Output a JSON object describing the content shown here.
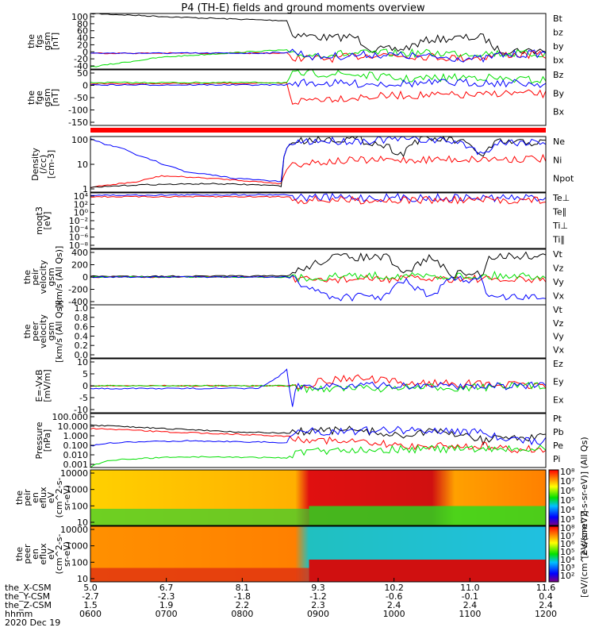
{
  "title": "P4 (TH-E) fields and ground moments overview",
  "colors": {
    "black": "#000000",
    "red": "#ff0000",
    "green": "#00e000",
    "blue": "#0000ff"
  },
  "chart_data": [
    {
      "type": "line",
      "name": "fgs-gsm",
      "ylabel": [
        "the",
        "fgs",
        "gsm",
        "[nT]"
      ],
      "yticks": [
        "100",
        "80",
        "60",
        "40",
        "20",
        "0",
        "-20",
        "-40"
      ],
      "ylim": [
        -40,
        100
      ],
      "legend": [
        {
          "label": "Bt",
          "color": "black"
        },
        {
          "label": "bz",
          "color": "red"
        },
        {
          "label": "by",
          "color": "green"
        },
        {
          "label": "bx",
          "color": "blue"
        }
      ],
      "series": [
        {
          "name": "Bt",
          "color": "black",
          "x": [
            5,
            25,
            40,
            46,
            47,
            52,
            55,
            57,
            60,
            64,
            70,
            76,
            82,
            87,
            90,
            97,
            100
          ],
          "y": [
            100,
            90,
            84,
            82,
            48,
            42,
            38,
            40,
            42,
            8,
            10,
            35,
            38,
            40,
            8,
            6,
            8
          ]
        },
        {
          "name": "bz",
          "color": "red",
          "x": [
            5,
            46,
            47,
            52,
            57,
            64,
            70,
            82,
            87,
            90,
            100
          ],
          "y": [
            0,
            0,
            -10,
            -15,
            -12,
            -3,
            -5,
            -12,
            -10,
            -3,
            -5
          ]
        },
        {
          "name": "by",
          "color": "green",
          "x": [
            5,
            20,
            40,
            46,
            47,
            64,
            87,
            100
          ],
          "y": [
            -35,
            -10,
            5,
            8,
            -5,
            0,
            0,
            -2
          ]
        },
        {
          "name": "bx",
          "color": "blue",
          "x": [
            5,
            40,
            46,
            47,
            52,
            64,
            87,
            90,
            100
          ],
          "y": [
            0,
            0,
            2,
            5,
            -10,
            -3,
            -15,
            -5,
            0
          ]
        }
      ]
    },
    {
      "type": "line",
      "name": "fge-gsm",
      "ylabel": [
        "the",
        "fge",
        "gsm",
        "[nT]"
      ],
      "yticks": [
        "50",
        "0",
        "-50",
        "-100",
        "-150"
      ],
      "ylim": [
        -180,
        60
      ],
      "legend": [
        {
          "label": "Bz",
          "color": "red"
        },
        {
          "label": "By",
          "color": "green"
        },
        {
          "label": "Bx",
          "color": "blue"
        }
      ],
      "series": [
        {
          "name": "Bz",
          "color": "red",
          "x": [
            5,
            46,
            47,
            52,
            60,
            70,
            87,
            90,
            100
          ],
          "y": [
            0,
            2,
            -80,
            -65,
            -60,
            -50,
            -50,
            -40,
            -45
          ]
        },
        {
          "name": "By",
          "color": "green",
          "x": [
            5,
            46,
            47,
            52,
            60,
            70,
            87,
            90,
            100
          ],
          "y": [
            5,
            5,
            40,
            45,
            40,
            20,
            30,
            20,
            15
          ]
        },
        {
          "name": "Bx",
          "color": "blue",
          "x": [
            5,
            46,
            47,
            60,
            87,
            100
          ],
          "y": [
            -5,
            -5,
            5,
            0,
            5,
            0
          ]
        }
      ]
    },
    {
      "type": "line",
      "name": "density",
      "ylabel": [
        "Density",
        "(/cc)",
        "[cm-3]"
      ],
      "yticks": [
        "100",
        "10",
        "1"
      ],
      "yscale": "log",
      "ylim": [
        0.3,
        200
      ],
      "legend": [
        {
          "label": "Ne",
          "color": "red"
        },
        {
          "label": "Ni",
          "color": "black"
        },
        {
          "label": "Npot",
          "color": "blue"
        }
      ],
      "series": [
        {
          "name": "Ne",
          "color": "red",
          "x": [
            5,
            15,
            20,
            30,
            40,
            45,
            47,
            52,
            60,
            80,
            100
          ],
          "y": [
            0.5,
            1,
            2,
            1.5,
            1,
            0.8,
            8,
            10,
            12,
            14,
            15
          ]
        },
        {
          "name": "Ni",
          "color": "black",
          "x": [
            5,
            15,
            30,
            40,
            45,
            47,
            52,
            60,
            70,
            74,
            80,
            87,
            90,
            100
          ],
          "y": [
            0.5,
            0.7,
            0.8,
            0.7,
            0.6,
            100,
            150,
            150,
            20,
            150,
            140,
            15,
            100,
            100
          ]
        },
        {
          "name": "Npot",
          "color": "blue",
          "x": [
            5,
            8,
            15,
            20,
            25,
            35,
            45,
            47,
            52,
            60,
            70,
            80,
            87,
            90,
            100
          ],
          "y": [
            150,
            80,
            20,
            8,
            3,
            1.5,
            1,
            100,
            120,
            120,
            150,
            120,
            20,
            100,
            110
          ]
        }
      ]
    },
    {
      "type": "line",
      "name": "moqt3",
      "ylabel": [
        "moqt3",
        "[eV]"
      ],
      "yticks": [
        "10⁴",
        "10²",
        "10⁰",
        "10⁻²",
        "10⁻⁴",
        "10⁻⁶",
        "10⁻⁸"
      ],
      "yscale": "log",
      "ylim": [
        1e-08,
        10000
      ],
      "legend": [
        {
          "label": "Te⊥",
          "color": "red"
        },
        {
          "label": "Te∥",
          "color": "black"
        },
        {
          "label": "Ti⊥",
          "color": "blue"
        },
        {
          "label": "Ti∥",
          "color": "green"
        }
      ],
      "series": [
        {
          "name": "Ti⊥",
          "color": "blue",
          "x": [
            5,
            40,
            46,
            48,
            100
          ],
          "y": [
            3000,
            4000,
            4000,
            1000,
            800
          ]
        },
        {
          "name": "Te⊥",
          "color": "red",
          "x": [
            5,
            40,
            46,
            48,
            100
          ],
          "y": [
            1500,
            1500,
            1500,
            300,
            250
          ]
        }
      ]
    },
    {
      "type": "line",
      "name": "peir-velocity-gsm",
      "ylabel": [
        "the",
        "peir",
        "velocity",
        "gsm",
        "[km/s (All Qs)]"
      ],
      "yticks": [
        "400",
        "200",
        "0",
        "-200",
        "-400"
      ],
      "ylim": [
        -400,
        400
      ],
      "legend": [
        {
          "label": "Vt",
          "color": "black"
        },
        {
          "label": "Vz",
          "color": "red"
        },
        {
          "label": "Vy",
          "color": "green"
        },
        {
          "label": "Vx",
          "color": "blue"
        }
      ],
      "series": [
        {
          "name": "Vt",
          "color": "black",
          "x": [
            5,
            46,
            48,
            55,
            56,
            67,
            70,
            76,
            80,
            87,
            88,
            100
          ],
          "y": [
            10,
            15,
            80,
            280,
            290,
            280,
            30,
            300,
            40,
            50,
            300,
            310
          ]
        },
        {
          "name": "Vz",
          "color": "red",
          "x": [
            5,
            46,
            48,
            60,
            87,
            88,
            100
          ],
          "y": [
            0,
            0,
            -50,
            -30,
            -20,
            -50,
            -40
          ]
        },
        {
          "name": "Vy",
          "color": "green",
          "x": [
            5,
            46,
            48,
            60,
            87,
            88,
            100
          ],
          "y": [
            0,
            0,
            -20,
            20,
            10,
            20,
            20
          ]
        },
        {
          "name": "Vx",
          "color": "blue",
          "x": [
            5,
            46,
            48,
            55,
            56,
            67,
            70,
            76,
            80,
            87,
            88,
            100
          ],
          "y": [
            0,
            0,
            -60,
            -280,
            -290,
            -280,
            -30,
            -300,
            -40,
            -40,
            -300,
            -300
          ]
        }
      ]
    },
    {
      "type": "line",
      "name": "peer-velocity-gsm",
      "ylabel": [
        "the",
        "peer",
        "velocity",
        "gsm",
        "[km/s (All Qs)]"
      ],
      "yticks": [
        "1.0",
        "0.8",
        "0.6",
        "0.4",
        "0.2",
        "0.0"
      ],
      "ylim": [
        0,
        1
      ],
      "legend": [
        {
          "label": "Vt",
          "color": "black"
        },
        {
          "label": "Vz",
          "color": "red"
        },
        {
          "label": "Vy",
          "color": "green"
        },
        {
          "label": "Vx",
          "color": "blue"
        }
      ],
      "series": []
    },
    {
      "type": "line",
      "name": "e-vxb",
      "ylabel": [
        "E=-VxB",
        "[mV/m]"
      ],
      "yticks": [
        "10",
        "5",
        "0",
        "-5",
        "-10"
      ],
      "ylim": [
        -10,
        10
      ],
      "legend": [
        {
          "label": "Ez",
          "color": "red"
        },
        {
          "label": "Ey",
          "color": "green"
        },
        {
          "label": "Ex",
          "color": "blue"
        }
      ],
      "series": [
        {
          "name": "Ez",
          "color": "red",
          "x": [
            5,
            40,
            46,
            48,
            55,
            60,
            70,
            80,
            87,
            100
          ],
          "y": [
            0,
            0,
            0,
            0,
            2,
            3,
            1,
            1,
            0.5,
            0
          ]
        },
        {
          "name": "Ey",
          "color": "green",
          "x": [
            5,
            46,
            48,
            60,
            87,
            100
          ],
          "y": [
            0,
            0,
            -1,
            -1,
            -0.5,
            0
          ]
        },
        {
          "name": "Ex",
          "color": "blue",
          "x": [
            5,
            40,
            44,
            46,
            47,
            48,
            100
          ],
          "y": [
            -1,
            -1,
            3,
            6,
            -8,
            0,
            0
          ]
        }
      ]
    },
    {
      "type": "line",
      "name": "pressure",
      "ylabel": [
        "Pressure",
        "[nPa]"
      ],
      "yticks": [
        "100.000",
        "10.000",
        "1.000",
        "0.100",
        "0.010",
        "0.001"
      ],
      "yscale": "log",
      "ylim": [
        0.001,
        100
      ],
      "legend": [
        {
          "label": "Pt",
          "color": "black"
        },
        {
          "label": "Pb",
          "color": "red"
        },
        {
          "label": "Pe",
          "color": "green"
        },
        {
          "label": "Pi",
          "color": "blue"
        }
      ],
      "series": [
        {
          "name": "Pt",
          "color": "black",
          "x": [
            5,
            20,
            35,
            46,
            48,
            60,
            70,
            74,
            80,
            87,
            90,
            100
          ],
          "y": [
            8,
            4,
            2,
            1.5,
            2,
            3,
            0.6,
            2,
            1.5,
            0.3,
            0.6,
            0.6
          ]
        },
        {
          "name": "Pb",
          "color": "red",
          "x": [
            5,
            20,
            35,
            46,
            48,
            60,
            70,
            80,
            87,
            90,
            100
          ],
          "y": [
            4,
            2,
            1.2,
            0.8,
            0.5,
            0.2,
            0.1,
            0.1,
            0.1,
            0.05,
            0.05
          ]
        },
        {
          "name": "Pi",
          "color": "blue",
          "x": [
            5,
            10,
            25,
            46,
            48,
            60,
            70,
            80,
            87,
            90,
            100
          ],
          "y": [
            0.1,
            0.2,
            0.3,
            0.2,
            2,
            2.5,
            3,
            2.5,
            2,
            0.3,
            0.3
          ]
        },
        {
          "name": "Pe",
          "color": "green",
          "x": [
            5,
            10,
            25,
            46,
            48,
            60,
            87,
            90,
            100
          ],
          "y": [
            0.001,
            0.005,
            0.01,
            0.008,
            0.02,
            0.05,
            0.05,
            0.05,
            0.05
          ]
        }
      ]
    },
    {
      "type": "heatmap",
      "name": "peir-en-eflux",
      "ylabel": [
        "the",
        "peir",
        "en",
        "eflux",
        "eV",
        "(cm^2-s-",
        "sr-eV)"
      ],
      "yticks": [
        "10000",
        "1000",
        "100",
        "10"
      ],
      "yscale": "log",
      "colorbar_ticks": [
        "10⁸",
        "10⁷",
        "10⁶",
        "10⁵",
        "10⁴",
        "10³"
      ],
      "colorbar_label": "[eV/(cm^2-s-sr-eV)] (All Qs)"
    },
    {
      "type": "heatmap",
      "name": "peer-en-eflux",
      "ylabel": [
        "the",
        "peer",
        "en",
        "eflux",
        "eV",
        "(cm^2-s-",
        "sr-eV)"
      ],
      "yticks": [
        "10000",
        "1000",
        "100",
        "10"
      ],
      "yscale": "log",
      "colorbar_ticks": [
        "10⁸",
        "10⁷",
        "10⁶",
        "10⁵",
        "10⁴",
        "10³",
        "10²"
      ],
      "colorbar_label": "[eV/(cm^2-s-sr-eV)]"
    }
  ],
  "time_axis": {
    "rows": [
      {
        "label": "the_X-CSM",
        "values": [
          "5.0",
          "6.7",
          "8.1",
          "9.3",
          "10.2",
          "11.0",
          "11.6"
        ]
      },
      {
        "label": "the_Y-CSM",
        "values": [
          "-2.7",
          "-2.3",
          "-1.8",
          "-1.2",
          "-0.6",
          "-0.1",
          "0.4"
        ]
      },
      {
        "label": "the_Z-CSM",
        "values": [
          "1.5",
          "1.9",
          "2.2",
          "2.3",
          "2.4",
          "2.4",
          "2.4"
        ]
      },
      {
        "label": "hhmm",
        "values": [
          "0600",
          "0700",
          "0800",
          "0900",
          "1000",
          "1100",
          "1200"
        ]
      }
    ],
    "date": "2020 Dec 19"
  }
}
